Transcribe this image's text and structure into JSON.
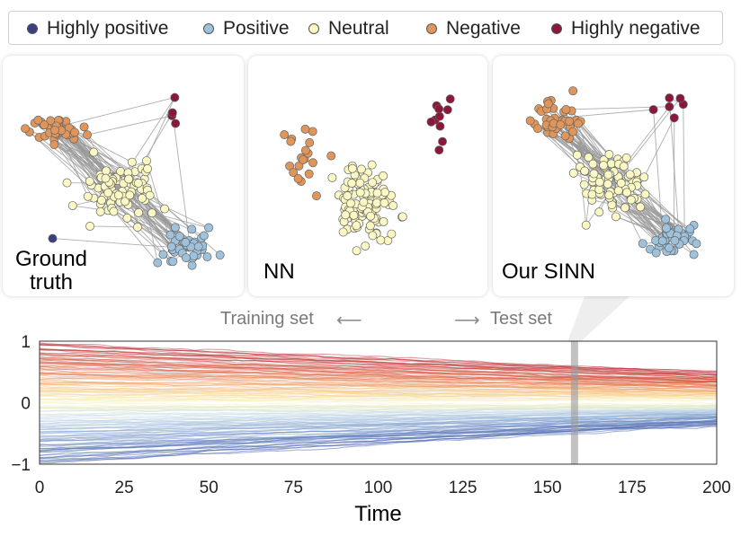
{
  "legend": {
    "items": [
      {
        "label": "Highly positive",
        "color": "#3b3d85"
      },
      {
        "label": "Positive",
        "color": "#9ec2dc"
      },
      {
        "label": "Neutral",
        "color": "#fbf8c3"
      },
      {
        "label": "Negative",
        "color": "#e0955a"
      },
      {
        "label": "Highly negative",
        "color": "#8a1838"
      }
    ]
  },
  "panels": [
    {
      "label_line1": "Ground",
      "label_line2": "truth"
    },
    {
      "label_line1": "NN",
      "label_line2": ""
    },
    {
      "label_line1": "Our SINN",
      "label_line2": ""
    }
  ],
  "splits": {
    "training": "Training set",
    "test": "Test set"
  },
  "chart_data": {
    "type": "line",
    "xlabel": "Time",
    "ylabel": "",
    "xlim": [
      0,
      200
    ],
    "ylim": [
      -1,
      1
    ],
    "x_ticks": [
      "0",
      "25",
      "50",
      "75",
      "100",
      "125",
      "150",
      "175",
      "200"
    ],
    "y_ticks": [
      "1",
      "0",
      "−1"
    ],
    "split_time": 158,
    "series_summary": [
      {
        "group": "highly negative opinions (red)",
        "start": 0.92,
        "end": 0.45
      },
      {
        "group": "neutral opinions (yellow)",
        "start": 0.15,
        "end": 0.08
      },
      {
        "group": "highly positive opinions (blue)",
        "start": -0.92,
        "end": -0.25
      }
    ]
  }
}
